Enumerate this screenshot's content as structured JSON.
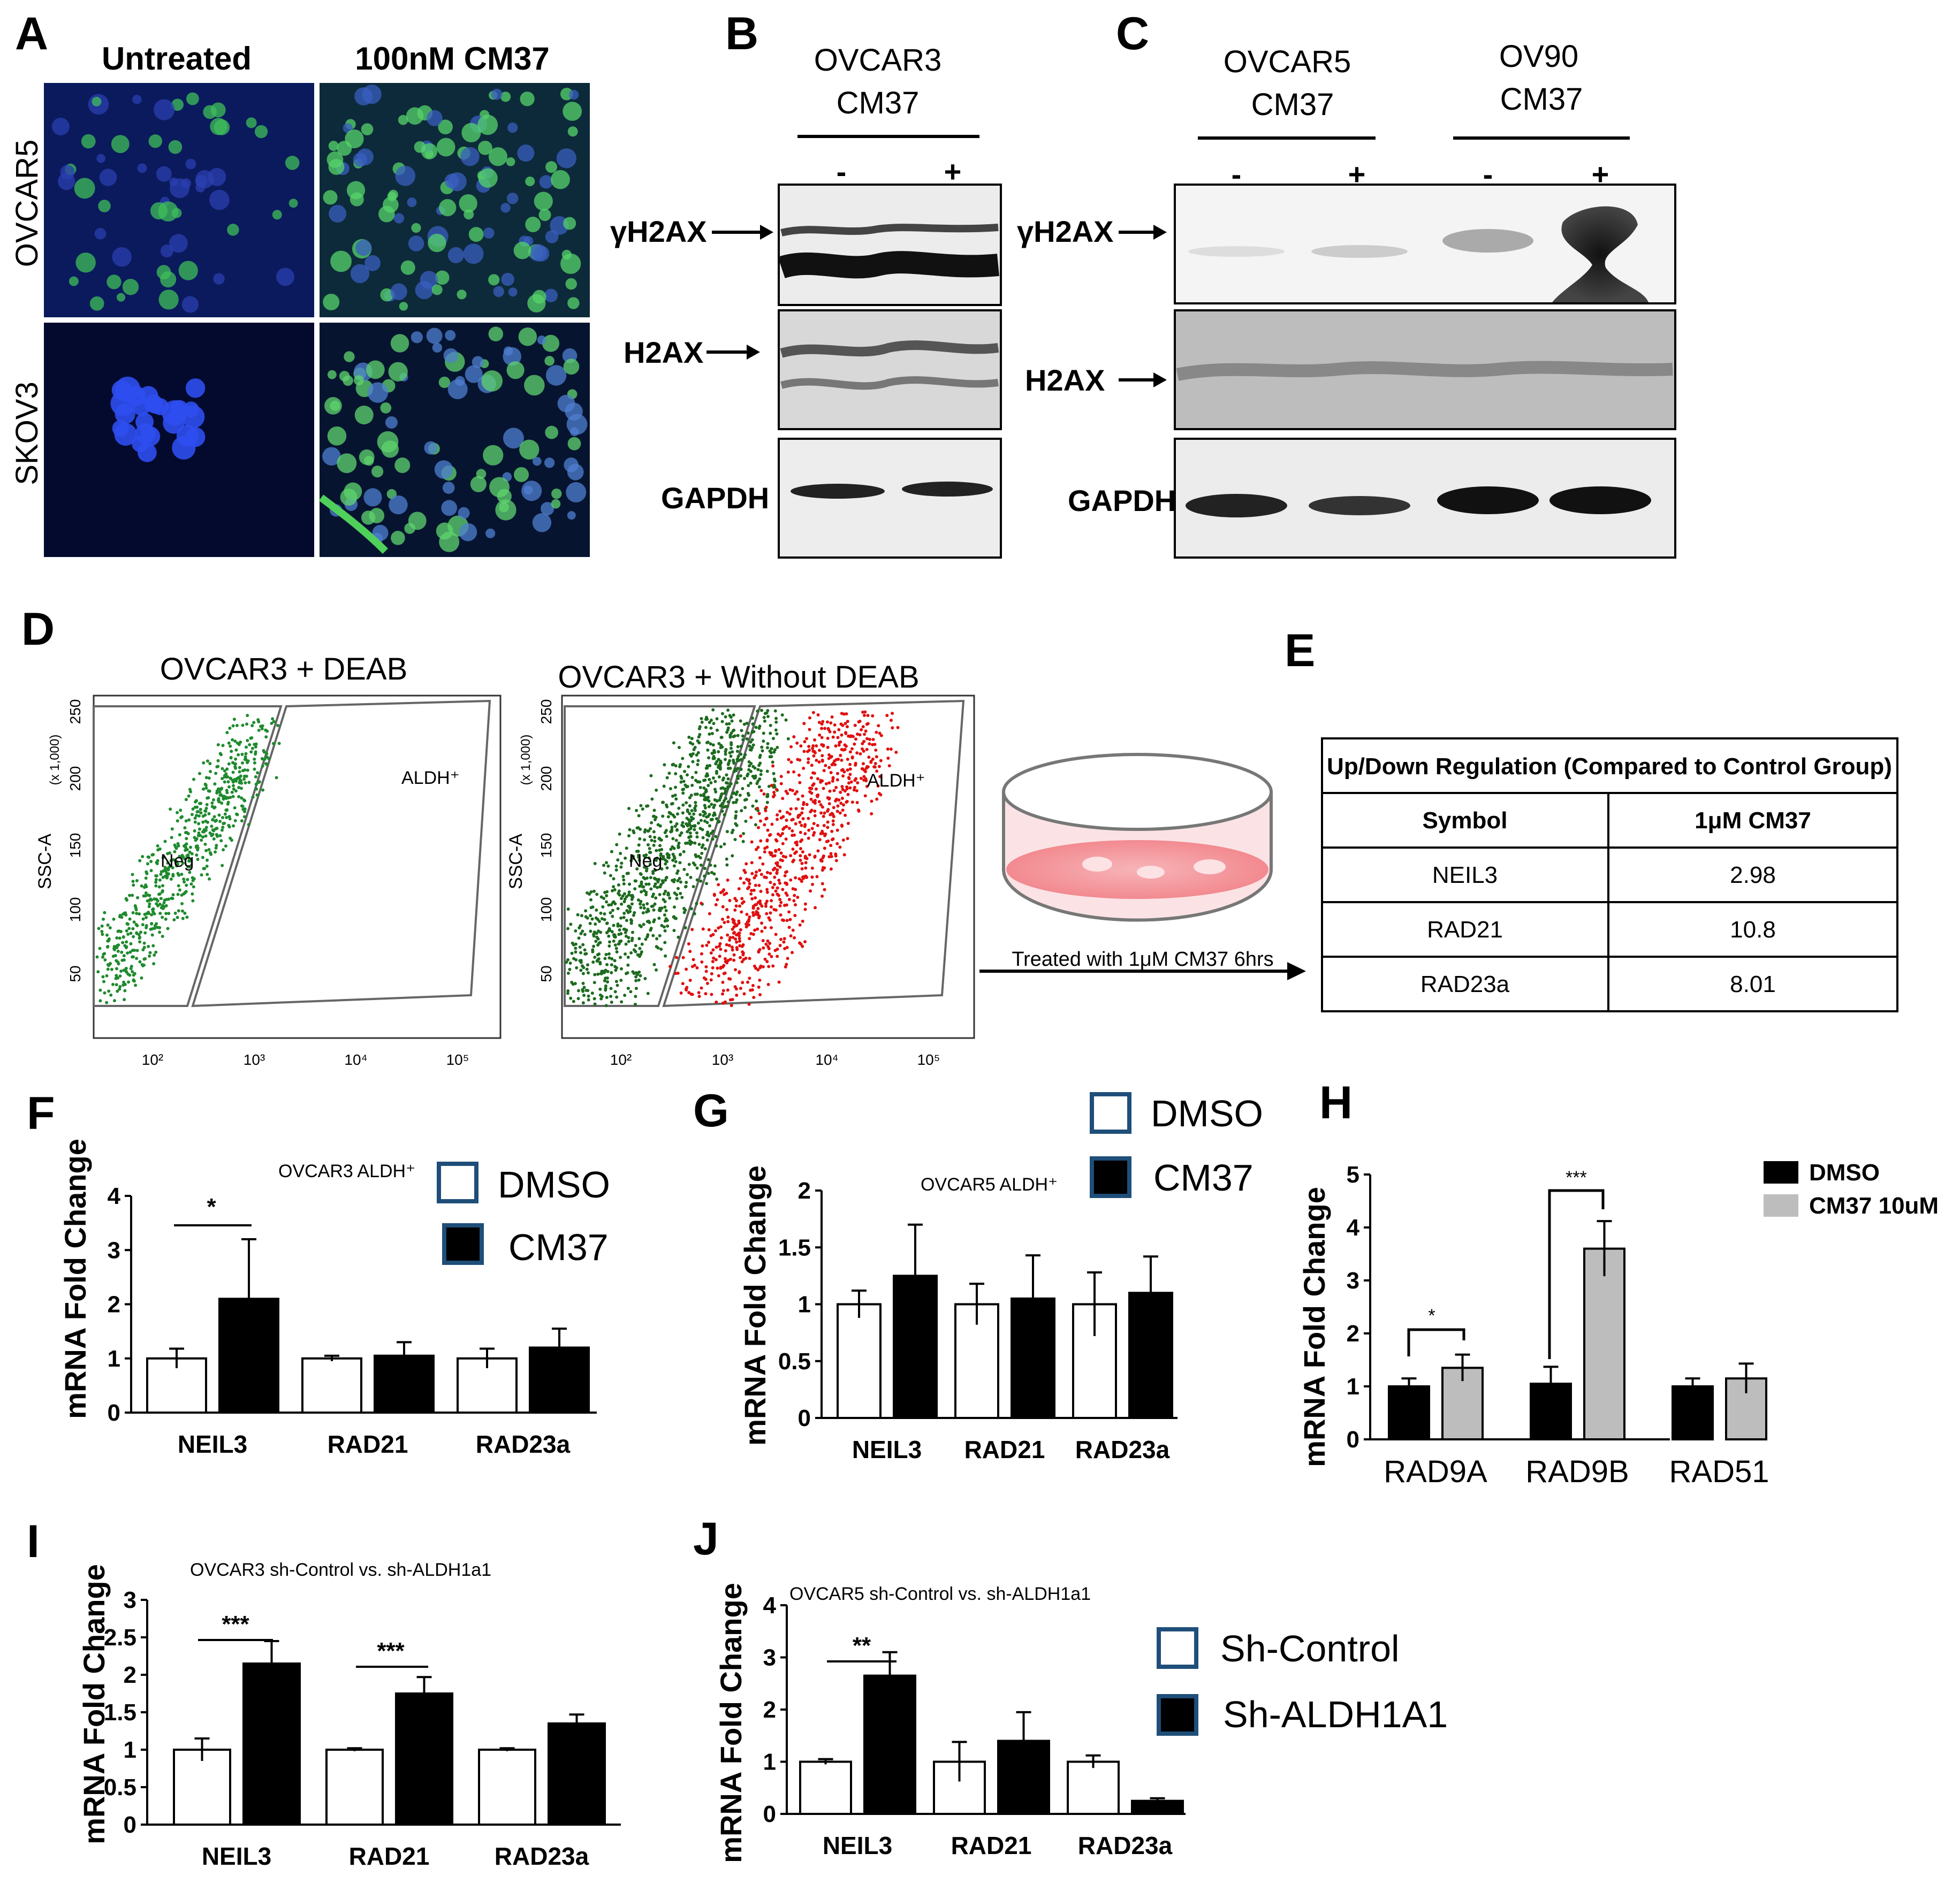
{
  "panelA": {
    "label": "A",
    "col_headers": [
      "Untreated",
      "100nM CM37"
    ],
    "row_labels": [
      "OVCAR5",
      "SKOV3"
    ]
  },
  "panelB": {
    "label": "B",
    "group": [
      "OVCAR3",
      "CM37"
    ],
    "lanes": [
      "-",
      "+"
    ],
    "bands": [
      "γH2AX",
      "H2AX",
      "GAPDH"
    ]
  },
  "panelC": {
    "label": "C",
    "groups": [
      {
        "line1": "OVCAR5",
        "line2": "CM37"
      },
      {
        "line1": "OV90",
        "line2": "CM37"
      }
    ],
    "lanes": [
      "-",
      "+",
      "-",
      "+"
    ],
    "bands": [
      "γH2AX",
      "H2AX",
      "GAPDH"
    ]
  },
  "panelD": {
    "label": "D",
    "plots": [
      {
        "title": "OVCAR3 + DEAB",
        "gate_neg": "Neg",
        "gate_pos": "ALDH⁺"
      },
      {
        "title": "OVCAR3 + Without DEAB",
        "gate_neg": "Neg",
        "gate_pos": "ALDH⁺"
      }
    ],
    "y_axis": "SSC-A",
    "y_scale": "(x 1,000)",
    "y_ticks": [
      "250",
      "200",
      "150",
      "100",
      "50"
    ],
    "x_ticks": [
      "10²",
      "10³",
      "10⁴",
      "10⁵"
    ],
    "arrow_text": "Treated with 1μM CM37 6hrs"
  },
  "panelE": {
    "label": "E",
    "header": "Up/Down Regulation (Compared to Control Group)",
    "columns": [
      "Symbol",
      "1μM CM37"
    ],
    "rows": [
      [
        "NEIL3",
        "2.98"
      ],
      [
        "RAD21",
        "10.8"
      ],
      [
        "RAD23a",
        "8.01"
      ]
    ]
  },
  "panelF": {
    "label": "F",
    "subtitle": "OVCAR3 ALDH⁺",
    "ylabel": "mRNA Fold Change",
    "legend": [
      "DMSO",
      "CM37"
    ],
    "significance": [
      "*"
    ]
  },
  "panelG": {
    "label": "G",
    "subtitle": "OVCAR5 ALDH⁺",
    "ylabel": "mRNA Fold Change",
    "legend": [
      "DMSO",
      "CM37"
    ]
  },
  "panelH": {
    "label": "H",
    "ylabel": "mRNA Fold Change",
    "legend": [
      "DMSO",
      "CM37 10uM"
    ],
    "significance": [
      "*",
      "***"
    ]
  },
  "panelI": {
    "label": "I",
    "subtitle": "OVCAR3 sh-Control vs. sh-ALDH1a1",
    "ylabel": "mRNA Fold Change",
    "significance": [
      "***",
      "***"
    ]
  },
  "panelJ": {
    "label": "J",
    "subtitle": "OVCAR5 sh-Control vs. sh-ALDH1a1",
    "ylabel": "mRNA Fold Change",
    "legend": [
      "Sh-Control",
      "Sh-ALDH1A1"
    ],
    "significance": [
      "**"
    ]
  },
  "chart_data": [
    {
      "type": "bar",
      "categories": [
        "NEIL3",
        "RAD21",
        "RAD23a"
      ],
      "series": [
        {
          "name": "DMSO",
          "values": [
            1.0,
            1.0,
            1.0
          ],
          "errors": [
            0.18,
            0.05,
            0.18
          ]
        },
        {
          "name": "CM37",
          "values": [
            2.1,
            1.05,
            1.2
          ],
          "errors": [
            1.1,
            0.25,
            0.35
          ]
        }
      ],
      "ylabel": "mRNA Fold Change",
      "ylim": [
        0,
        4
      ],
      "yticks": [
        "0",
        "1",
        "2",
        "3",
        "4"
      ],
      "colors": [
        "#ffffff",
        "#000000"
      ]
    },
    {
      "type": "bar",
      "categories": [
        "NEIL3",
        "RAD21",
        "RAD23a"
      ],
      "series": [
        {
          "name": "DMSO",
          "values": [
            1.0,
            1.0,
            1.0
          ],
          "errors": [
            0.12,
            0.18,
            0.28
          ]
        },
        {
          "name": "CM37",
          "values": [
            1.25,
            1.05,
            1.1
          ],
          "errors": [
            0.45,
            0.38,
            0.32
          ]
        }
      ],
      "ylabel": "mRNA Fold Change",
      "ylim": [
        0,
        2
      ],
      "yticks": [
        "0",
        "0.5",
        "1",
        "1.5",
        "2"
      ],
      "colors": [
        "#ffffff",
        "#000000"
      ]
    },
    {
      "type": "bar",
      "categories": [
        "RAD9A",
        "RAD9B",
        "RAD51"
      ],
      "series": [
        {
          "name": "DMSO",
          "values": [
            1.0,
            1.05,
            1.0
          ],
          "errors": [
            0.15,
            0.32,
            0.15
          ]
        },
        {
          "name": "CM37 10uM",
          "values": [
            1.35,
            3.6,
            1.15
          ],
          "errors": [
            0.25,
            0.52,
            0.28
          ]
        }
      ],
      "ylabel": "mRNA Fold Change",
      "ylim": [
        0,
        5
      ],
      "yticks": [
        "0",
        "1",
        "2",
        "3",
        "4",
        "5"
      ],
      "colors": [
        "#000000",
        "#bdbdbd"
      ]
    },
    {
      "type": "bar",
      "categories": [
        "NEIL3",
        "RAD21",
        "RAD23a"
      ],
      "series": [
        {
          "name": "Sh-Control",
          "values": [
            1.0,
            1.0,
            1.0
          ],
          "errors": [
            0.15,
            0.02,
            0.02
          ]
        },
        {
          "name": "Sh-ALDH1A1",
          "values": [
            2.15,
            1.75,
            1.35
          ],
          "errors": [
            0.3,
            0.22,
            0.12
          ]
        }
      ],
      "ylabel": "mRNA Fold Change",
      "ylim": [
        0,
        3
      ],
      "yticks": [
        "0",
        "0.5",
        "1",
        "1.5",
        "2",
        "2.5",
        "3"
      ],
      "colors": [
        "#ffffff",
        "#000000"
      ]
    },
    {
      "type": "bar",
      "categories": [
        "NEIL3",
        "RAD21",
        "RAD23a"
      ],
      "series": [
        {
          "name": "Sh-Control",
          "values": [
            1.0,
            1.0,
            1.0
          ],
          "errors": [
            0.05,
            0.38,
            0.12
          ]
        },
        {
          "name": "Sh-ALDH1A1",
          "values": [
            2.65,
            1.4,
            0.25
          ],
          "errors": [
            0.45,
            0.55,
            0.05
          ]
        }
      ],
      "ylabel": "mRNA Fold Change",
      "ylim": [
        0,
        4
      ],
      "yticks": [
        "0",
        "1",
        "2",
        "3",
        "4"
      ],
      "colors": [
        "#ffffff",
        "#000000"
      ]
    }
  ]
}
